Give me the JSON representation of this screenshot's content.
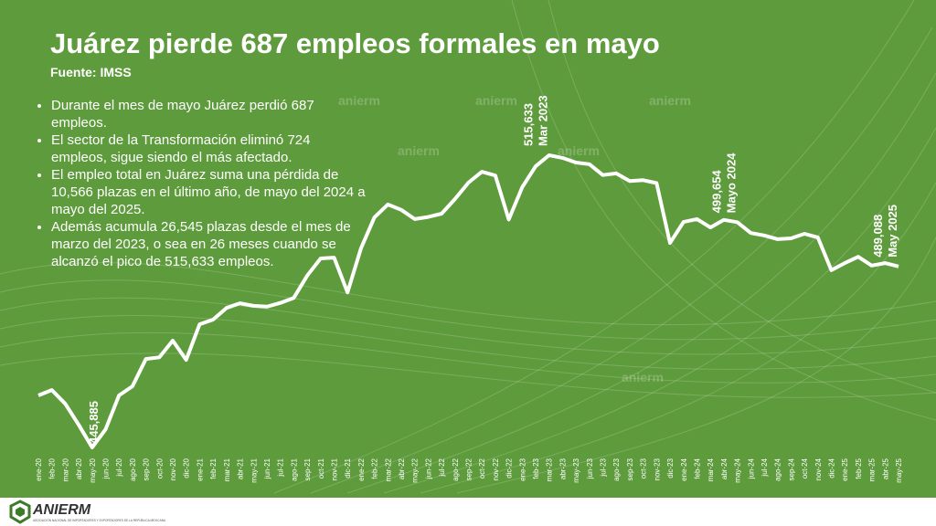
{
  "title": "Juárez pierde 687 empleos formales en mayo",
  "source": "Fuente: IMSS",
  "bullets": [
    "Durante el mes de mayo Juárez perdió 687 empleos.",
    "El sector de la Transformación eliminó 724 empleos, sigue siendo el más afectado.",
    "El empleo total en Juárez suma una pérdida de 10,566 plazas en el último año, de mayo del 2024 a mayo del 2025.",
    "Además acumula 26,545 plazas desde el mes de marzo del 2023, o sea en 26 meses cuando se alcanzó el pico de 515,633 empleos."
  ],
  "logo": {
    "name": "ANIERM",
    "tagline": "ASOCIACIÓN NACIONAL DE IMPORTADORES Y EXPORTADORES DE LA REPÚBLICA MEXICANA"
  },
  "watermark": "anierm",
  "chart_data": {
    "type": "line",
    "categories": [
      "ene-20",
      "feb-20",
      "mar-20",
      "abr-20",
      "may-20",
      "jun-20",
      "jul-20",
      "ago-20",
      "sep-20",
      "oct-20",
      "nov-20",
      "dic-20",
      "ene-21",
      "feb-21",
      "mar-21",
      "abr-21",
      "may-21",
      "jun-21",
      "jul-21",
      "ago-21",
      "sep-21",
      "oct-21",
      "nov-21",
      "dic-21",
      "ene-22",
      "feb-22",
      "mar-22",
      "abr-22",
      "may-22",
      "jun-22",
      "jul-22",
      "ago-22",
      "sep-22",
      "oct-22",
      "nov-22",
      "dic-22",
      "ene-23",
      "feb-23",
      "mar-23",
      "abr-23",
      "may-23",
      "jun-23",
      "jul-23",
      "ago-23",
      "sep-23",
      "oct-23",
      "nov-23",
      "dic-23",
      "ene-24",
      "feb-24",
      "mar-24",
      "abr-24",
      "may-24",
      "jun-24",
      "jul-24",
      "ago-24",
      "sep-24",
      "oct-24",
      "nov-24",
      "dic-24",
      "ene-25",
      "feb-25",
      "mar-25",
      "abr-25",
      "may-25"
    ],
    "values": [
      458300,
      459600,
      456300,
      451300,
      445885,
      450200,
      458300,
      460500,
      467000,
      467400,
      471400,
      466800,
      475300,
      476400,
      479200,
      480300,
      479700,
      479500,
      480400,
      481600,
      486900,
      491000,
      491200,
      482900,
      493400,
      500800,
      503900,
      502600,
      500400,
      500900,
      501700,
      505200,
      509100,
      511700,
      510800,
      500300,
      508000,
      513000,
      515633,
      515000,
      513900,
      513500,
      510900,
      511300,
      509500,
      509700,
      509000,
      494700,
      499700,
      500400,
      498400,
      500200,
      499654,
      497100,
      496500,
      495600,
      495800,
      496900,
      496000,
      488200,
      489900,
      491400,
      489300,
      489900,
      489088
    ],
    "value_labels": [
      null,
      null,
      null,
      null,
      "445,885",
      null,
      null,
      null,
      null,
      null,
      null,
      null,
      null,
      null,
      null,
      null,
      null,
      null,
      null,
      null,
      null,
      null,
      null,
      null,
      null,
      null,
      null,
      null,
      null,
      null,
      null,
      null,
      null,
      null,
      null,
      null,
      null,
      null,
      "515,633",
      null,
      null,
      null,
      null,
      null,
      null,
      null,
      null,
      null,
      null,
      null,
      null,
      null,
      "499,654",
      null,
      null,
      null,
      null,
      null,
      null,
      null,
      null,
      null,
      null,
      null,
      "489,088"
    ],
    "date_labels": [
      null,
      null,
      null,
      null,
      null,
      null,
      null,
      null,
      null,
      null,
      null,
      null,
      null,
      null,
      null,
      null,
      null,
      null,
      null,
      null,
      null,
      null,
      null,
      null,
      null,
      null,
      null,
      null,
      null,
      null,
      null,
      null,
      null,
      null,
      null,
      null,
      null,
      null,
      "Mar 2023",
      null,
      null,
      null,
      null,
      null,
      null,
      null,
      null,
      null,
      null,
      null,
      null,
      null,
      "Mayo 2024",
      null,
      null,
      null,
      null,
      null,
      null,
      null,
      null,
      null,
      null,
      null,
      "May 2025"
    ],
    "color": "#ffffff",
    "ylim": [
      440000,
      520000
    ]
  }
}
